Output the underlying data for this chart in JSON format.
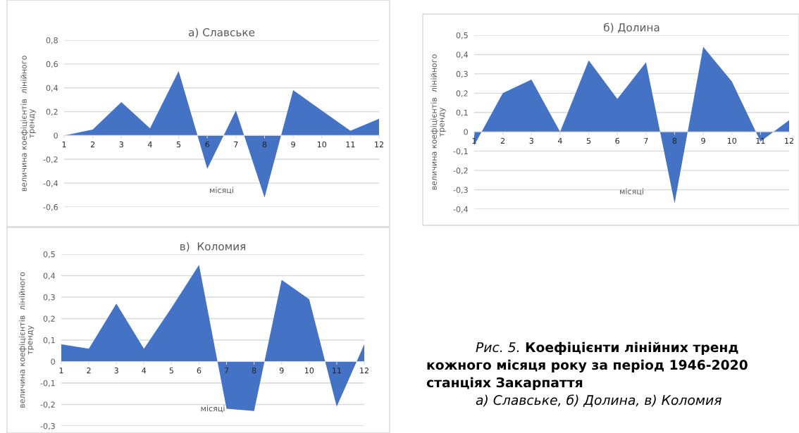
{
  "chart_data": [
    {
      "type": "area",
      "title": "а) Славське",
      "xlabel": "місяці",
      "ylabel": "величина коефіцієнтів  лінійного\nтренду",
      "color": "#4472c4",
      "grid": "y",
      "categories": [
        "1",
        "2",
        "3",
        "4",
        "5",
        "6",
        "7",
        "8",
        "9",
        "10",
        "11",
        "12"
      ],
      "values": [
        0,
        0.05,
        0.28,
        0.06,
        0.54,
        -0.28,
        0.21,
        -0.52,
        0.38,
        0.21,
        0.04,
        0.14
      ],
      "ylim": [
        -0.6,
        0.8
      ],
      "yticks": [
        {
          "value": -0.6,
          "label": "-0,6"
        },
        {
          "value": -0.4,
          "label": "-0,4"
        },
        {
          "value": -0.2,
          "label": "-0,2"
        },
        0,
        {
          "value": 0.2,
          "label": "0,2"
        },
        {
          "value": 0.4,
          "label": "0,4"
        },
        {
          "value": 0.6,
          "label": "0,6"
        },
        {
          "value": 0.8,
          "label": "0,8"
        }
      ]
    },
    {
      "type": "area",
      "title": "б) Долина",
      "xlabel": "місяці",
      "ylabel": "величина коефіцієнтів  лінійного\nтренду",
      "color": "#4472c4",
      "grid": "y",
      "categories": [
        "1",
        "2",
        "3",
        "4",
        "5",
        "6",
        "7",
        "8",
        "9",
        "10",
        "11",
        "12"
      ],
      "values": [
        -0.07,
        0.2,
        0.27,
        0.0,
        0.37,
        0.17,
        0.36,
        -0.37,
        0.44,
        0.26,
        -0.05,
        0.06
      ],
      "ylim": [
        -0.4,
        0.5
      ],
      "yticks": [
        {
          "value": -0.4,
          "label": "-0,4"
        },
        {
          "value": -0.3,
          "label": "-0,3"
        },
        {
          "value": -0.2,
          "label": "-0,2"
        },
        {
          "value": -0.1,
          "label": "-0,1"
        },
        0,
        {
          "value": 0.1,
          "label": "0,1"
        },
        {
          "value": 0.2,
          "label": "0,2"
        },
        {
          "value": 0.3,
          "label": "0,3"
        },
        {
          "value": 0.4,
          "label": "0,4"
        },
        {
          "value": 0.5,
          "label": "0,5"
        }
      ]
    },
    {
      "type": "area",
      "title": "в)  Коломия",
      "xlabel": "місяці",
      "ylabel": "величина коефіцієнтів  лінійного\nтренду",
      "color": "#4472c4",
      "grid": "y",
      "categories": [
        "1",
        "2",
        "3",
        "4",
        "5",
        "6",
        "7",
        "8",
        "9",
        "10",
        "11",
        "12"
      ],
      "values": [
        0.08,
        0.06,
        0.27,
        0.06,
        0.25,
        0.45,
        -0.22,
        -0.23,
        0.38,
        0.29,
        -0.21,
        0.08
      ],
      "ylim": [
        -0.3,
        0.5
      ],
      "yticks": [
        {
          "value": -0.3,
          "label": "-0,3"
        },
        {
          "value": -0.2,
          "label": "-0,2"
        },
        {
          "value": -0.1,
          "label": "-0,1"
        },
        0,
        {
          "value": 0.1,
          "label": "0,1"
        },
        {
          "value": 0.2,
          "label": "0,2"
        },
        {
          "value": 0.3,
          "label": "0,3"
        },
        {
          "value": 0.4,
          "label": "0,4"
        },
        {
          "value": 0.5,
          "label": "0,5"
        }
      ]
    },
    {
      "type": "other",
      "annotations": [
        "Рис. 5.",
        "Коефіцієнти лінійних тренд",
        "кожного місяця року за період 1946-2020",
        "станціях Закарпаття",
        "а) Славське, б) Долина, в) Коломия"
      ]
    }
  ]
}
